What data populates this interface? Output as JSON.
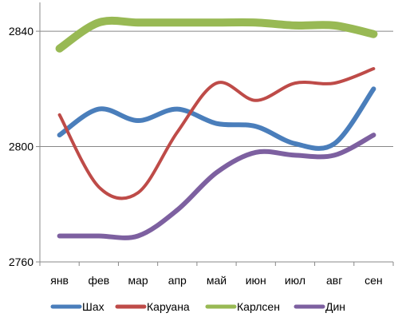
{
  "chart_data": {
    "type": "line",
    "categories": [
      "янв",
      "фев",
      "мар",
      "апр",
      "май",
      "июн",
      "июл",
      "авг",
      "сен"
    ],
    "yticks": [
      2760,
      2800,
      2840
    ],
    "ylim": [
      2760,
      2850
    ],
    "grid": "horizontal",
    "smooth": true,
    "legend_position": "bottom",
    "series": [
      {
        "name": "Шах",
        "color": "#4A7EBB",
        "values": [
          2804,
          2813,
          2809,
          2813,
          2808,
          2807,
          2801,
          2801,
          2820
        ]
      },
      {
        "name": "Каруана",
        "color": "#BE4B48",
        "values": [
          2811,
          2786,
          2784,
          2805,
          2822,
          2816,
          2822,
          2822,
          2827
        ]
      },
      {
        "name": "Карлсен",
        "color": "#98B954",
        "values": [
          2834,
          2843,
          2843,
          2843,
          2843,
          2843,
          2842,
          2842,
          2839
        ]
      },
      {
        "name": "Дин",
        "color": "#7D60A0",
        "values": [
          2769,
          2769,
          2769,
          2778,
          2791,
          2798,
          2797,
          2797,
          2804
        ]
      }
    ]
  }
}
